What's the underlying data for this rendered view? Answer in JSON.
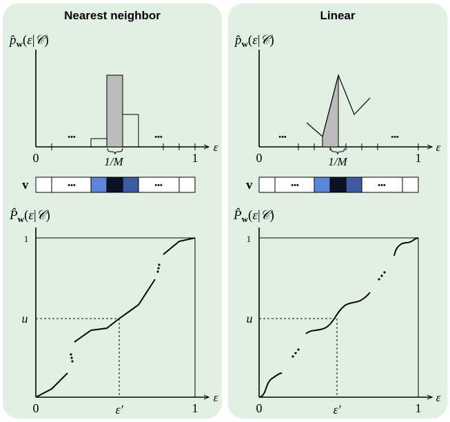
{
  "panels": {
    "left": {
      "title": "Nearest neighbor"
    },
    "right": {
      "title": "Linear"
    }
  },
  "labels": {
    "pdf_ylabel": "p̂w(ε|C)",
    "cdf_ylabel": "P̂w(ε|C)",
    "x_axis_symbol": "ε",
    "tick_zero": "0",
    "tick_one": "1",
    "bin_width": "1/M",
    "vector_symbol": "v",
    "ellipsis": "•••",
    "u_label": "u",
    "eps_prime_label": "ε′",
    "cdf_top_tick": "1"
  },
  "colors": {
    "panel_bg": "#e0f1e4",
    "highlight_bar": "#bcbcbc",
    "vec_light_blue": "#5b86d9",
    "vec_dark": "#0c1224",
    "vec_mid_blue": "#3e5aa0"
  }
}
